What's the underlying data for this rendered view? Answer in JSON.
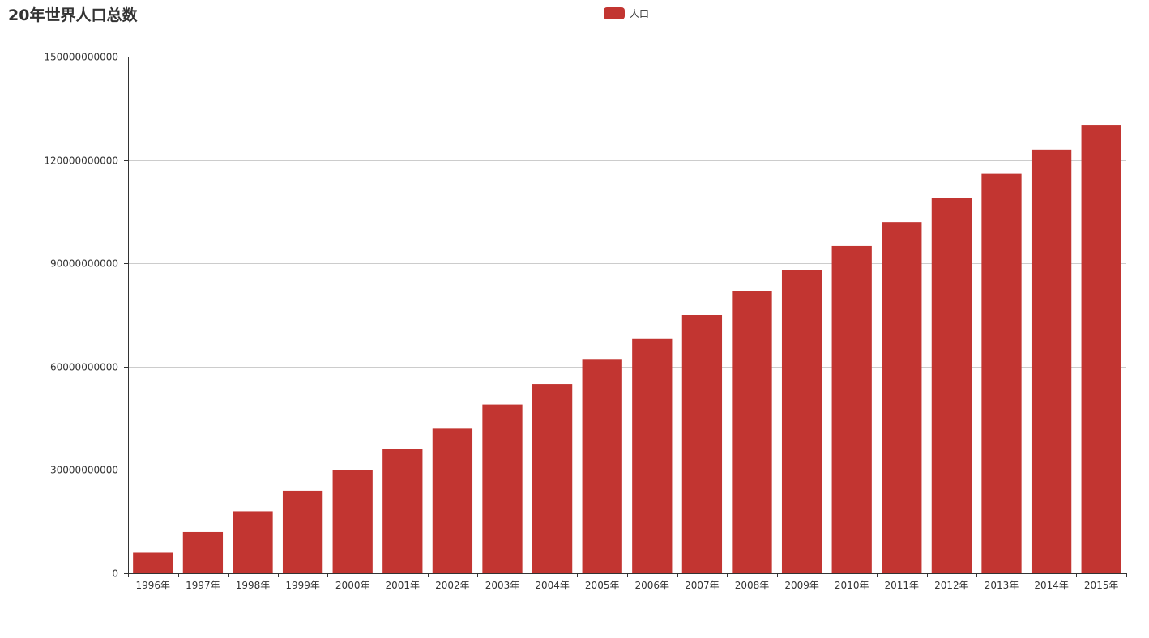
{
  "chart_data": {
    "type": "bar",
    "title": "20年世界人口总数",
    "categories": [
      "1996年",
      "1997年",
      "1998年",
      "1999年",
      "2000年",
      "2001年",
      "2002年",
      "2003年",
      "2004年",
      "2005年",
      "2006年",
      "2007年",
      "2008年",
      "2009年",
      "2010年",
      "2011年",
      "2012年",
      "2013年",
      "2014年",
      "2015年"
    ],
    "series": [
      {
        "name": "人口",
        "color": "#c23531",
        "values": [
          6000000000,
          12000000000,
          18000000000,
          24000000000,
          30000000000,
          36000000000,
          42000000000,
          49000000000,
          55000000000,
          62000000000,
          68000000000,
          75000000000,
          82000000000,
          88000000000,
          95000000000,
          102000000000,
          109000000000,
          116000000000,
          123000000000,
          130000000000
        ]
      }
    ],
    "ylim": [
      0,
      150000000000
    ],
    "yticks": [
      "0",
      "30000000000",
      "60000000000",
      "90000000000",
      "120000000000",
      "150000000000"
    ],
    "grid": true,
    "legend_position": "top-center"
  }
}
